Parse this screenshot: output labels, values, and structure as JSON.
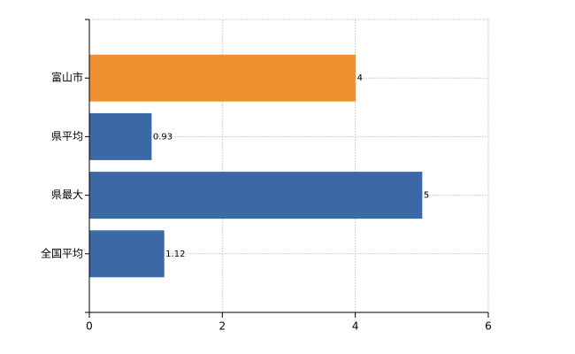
{
  "chart_data": {
    "type": "hbar",
    "categories": [
      "富山市",
      "県平均",
      "県最大",
      "全国平均"
    ],
    "values": [
      4,
      0.93,
      5,
      1.12
    ],
    "colors": [
      "#f0902e",
      "#3a69a5",
      "#3a69a5",
      "#3a69a5"
    ],
    "xlim": [
      0,
      6
    ],
    "xticks": [
      0,
      2,
      4,
      6
    ],
    "grid": true
  }
}
